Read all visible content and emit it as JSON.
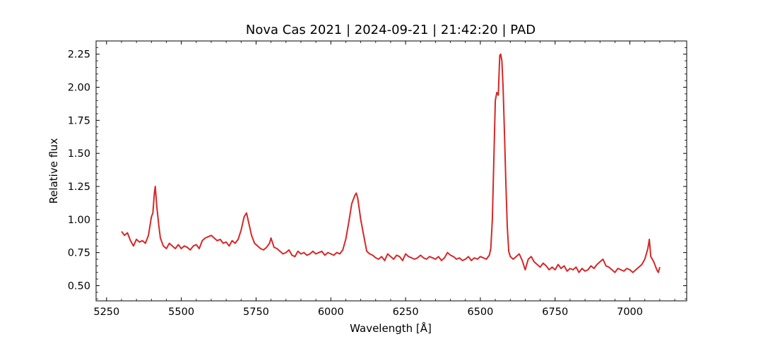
{
  "chart_data": {
    "type": "line",
    "title": "Nova Cas 2021 | 2024-09-21 | 21:42:20 | PAD",
    "xlabel": "Wavelength [Å]",
    "ylabel": "Relative flux",
    "xlim": [
      5215,
      7190
    ],
    "ylim": [
      0.385,
      2.35
    ],
    "x_ticks": [
      5250,
      5500,
      5750,
      6000,
      6250,
      6500,
      6750,
      7000
    ],
    "x_tick_labels": [
      "5250",
      "5500",
      "5750",
      "6000",
      "6250",
      "6500",
      "6750",
      "7000"
    ],
    "y_ticks": [
      0.5,
      0.75,
      1.0,
      1.25,
      1.5,
      1.75,
      2.0,
      2.25
    ],
    "y_tick_labels": [
      "0.50",
      "0.75",
      "1.00",
      "1.25",
      "1.50",
      "1.75",
      "2.00",
      "2.25"
    ],
    "grid": false,
    "series": [
      {
        "color": "#d62728",
        "points": [
          [
            5300,
            0.91
          ],
          [
            5310,
            0.88
          ],
          [
            5320,
            0.9
          ],
          [
            5330,
            0.84
          ],
          [
            5340,
            0.8
          ],
          [
            5350,
            0.85
          ],
          [
            5360,
            0.83
          ],
          [
            5370,
            0.84
          ],
          [
            5380,
            0.82
          ],
          [
            5390,
            0.88
          ],
          [
            5400,
            1.02
          ],
          [
            5405,
            1.05
          ],
          [
            5410,
            1.2
          ],
          [
            5413,
            1.25
          ],
          [
            5418,
            1.1
          ],
          [
            5425,
            0.95
          ],
          [
            5430,
            0.86
          ],
          [
            5440,
            0.8
          ],
          [
            5450,
            0.78
          ],
          [
            5460,
            0.82
          ],
          [
            5470,
            0.8
          ],
          [
            5480,
            0.78
          ],
          [
            5490,
            0.81
          ],
          [
            5500,
            0.78
          ],
          [
            5510,
            0.8
          ],
          [
            5520,
            0.79
          ],
          [
            5530,
            0.77
          ],
          [
            5540,
            0.8
          ],
          [
            5550,
            0.81
          ],
          [
            5560,
            0.78
          ],
          [
            5570,
            0.84
          ],
          [
            5580,
            0.86
          ],
          [
            5590,
            0.87
          ],
          [
            5600,
            0.88
          ],
          [
            5610,
            0.86
          ],
          [
            5620,
            0.84
          ],
          [
            5630,
            0.85
          ],
          [
            5640,
            0.82
          ],
          [
            5650,
            0.83
          ],
          [
            5660,
            0.8
          ],
          [
            5670,
            0.84
          ],
          [
            5680,
            0.82
          ],
          [
            5690,
            0.85
          ],
          [
            5700,
            0.92
          ],
          [
            5710,
            1.02
          ],
          [
            5718,
            1.05
          ],
          [
            5725,
            0.98
          ],
          [
            5735,
            0.88
          ],
          [
            5745,
            0.82
          ],
          [
            5755,
            0.8
          ],
          [
            5765,
            0.78
          ],
          [
            5775,
            0.77
          ],
          [
            5785,
            0.79
          ],
          [
            5795,
            0.82
          ],
          [
            5800,
            0.86
          ],
          [
            5810,
            0.79
          ],
          [
            5820,
            0.78
          ],
          [
            5830,
            0.76
          ],
          [
            5840,
            0.74
          ],
          [
            5850,
            0.75
          ],
          [
            5860,
            0.77
          ],
          [
            5870,
            0.73
          ],
          [
            5880,
            0.72
          ],
          [
            5890,
            0.76
          ],
          [
            5900,
            0.74
          ],
          [
            5910,
            0.75
          ],
          [
            5920,
            0.73
          ],
          [
            5930,
            0.74
          ],
          [
            5940,
            0.76
          ],
          [
            5950,
            0.74
          ],
          [
            5960,
            0.75
          ],
          [
            5970,
            0.76
          ],
          [
            5980,
            0.73
          ],
          [
            5990,
            0.75
          ],
          [
            6000,
            0.74
          ],
          [
            6010,
            0.73
          ],
          [
            6020,
            0.75
          ],
          [
            6030,
            0.74
          ],
          [
            6040,
            0.77
          ],
          [
            6050,
            0.85
          ],
          [
            6060,
            0.98
          ],
          [
            6070,
            1.12
          ],
          [
            6080,
            1.18
          ],
          [
            6085,
            1.2
          ],
          [
            6090,
            1.16
          ],
          [
            6095,
            1.08
          ],
          [
            6100,
            1.0
          ],
          [
            6110,
            0.88
          ],
          [
            6120,
            0.76
          ],
          [
            6130,
            0.74
          ],
          [
            6140,
            0.73
          ],
          [
            6150,
            0.71
          ],
          [
            6160,
            0.7
          ],
          [
            6170,
            0.72
          ],
          [
            6180,
            0.69
          ],
          [
            6190,
            0.74
          ],
          [
            6200,
            0.72
          ],
          [
            6210,
            0.7
          ],
          [
            6220,
            0.73
          ],
          [
            6230,
            0.72
          ],
          [
            6240,
            0.69
          ],
          [
            6250,
            0.74
          ],
          [
            6260,
            0.72
          ],
          [
            6270,
            0.71
          ],
          [
            6280,
            0.7
          ],
          [
            6290,
            0.71
          ],
          [
            6300,
            0.73
          ],
          [
            6310,
            0.71
          ],
          [
            6320,
            0.7
          ],
          [
            6330,
            0.72
          ],
          [
            6340,
            0.71
          ],
          [
            6350,
            0.7
          ],
          [
            6360,
            0.72
          ],
          [
            6370,
            0.69
          ],
          [
            6380,
            0.71
          ],
          [
            6390,
            0.75
          ],
          [
            6400,
            0.73
          ],
          [
            6410,
            0.72
          ],
          [
            6420,
            0.7
          ],
          [
            6430,
            0.71
          ],
          [
            6440,
            0.69
          ],
          [
            6450,
            0.7
          ],
          [
            6460,
            0.72
          ],
          [
            6470,
            0.69
          ],
          [
            6480,
            0.71
          ],
          [
            6490,
            0.7
          ],
          [
            6500,
            0.72
          ],
          [
            6510,
            0.71
          ],
          [
            6520,
            0.7
          ],
          [
            6530,
            0.73
          ],
          [
            6535,
            0.78
          ],
          [
            6540,
            1.0
          ],
          [
            6545,
            1.45
          ],
          [
            6550,
            1.9
          ],
          [
            6555,
            1.96
          ],
          [
            6560,
            1.94
          ],
          [
            6565,
            2.24
          ],
          [
            6568,
            2.25
          ],
          [
            6572,
            2.2
          ],
          [
            6576,
            2.0
          ],
          [
            6580,
            1.7
          ],
          [
            6585,
            1.3
          ],
          [
            6590,
            0.95
          ],
          [
            6595,
            0.76
          ],
          [
            6600,
            0.72
          ],
          [
            6610,
            0.7
          ],
          [
            6620,
            0.72
          ],
          [
            6630,
            0.74
          ],
          [
            6640,
            0.69
          ],
          [
            6650,
            0.62
          ],
          [
            6660,
            0.7
          ],
          [
            6670,
            0.72
          ],
          [
            6680,
            0.68
          ],
          [
            6690,
            0.66
          ],
          [
            6700,
            0.64
          ],
          [
            6710,
            0.67
          ],
          [
            6720,
            0.65
          ],
          [
            6730,
            0.62
          ],
          [
            6740,
            0.64
          ],
          [
            6750,
            0.62
          ],
          [
            6760,
            0.66
          ],
          [
            6770,
            0.63
          ],
          [
            6780,
            0.65
          ],
          [
            6790,
            0.61
          ],
          [
            6800,
            0.63
          ],
          [
            6810,
            0.62
          ],
          [
            6820,
            0.64
          ],
          [
            6830,
            0.6
          ],
          [
            6840,
            0.63
          ],
          [
            6850,
            0.61
          ],
          [
            6860,
            0.62
          ],
          [
            6870,
            0.65
          ],
          [
            6880,
            0.63
          ],
          [
            6890,
            0.66
          ],
          [
            6900,
            0.68
          ],
          [
            6910,
            0.7
          ],
          [
            6920,
            0.65
          ],
          [
            6930,
            0.64
          ],
          [
            6940,
            0.62
          ],
          [
            6950,
            0.6
          ],
          [
            6960,
            0.63
          ],
          [
            6970,
            0.62
          ],
          [
            6980,
            0.61
          ],
          [
            6990,
            0.63
          ],
          [
            7000,
            0.62
          ],
          [
            7010,
            0.6
          ],
          [
            7020,
            0.62
          ],
          [
            7030,
            0.64
          ],
          [
            7040,
            0.66
          ],
          [
            7050,
            0.7
          ],
          [
            7060,
            0.78
          ],
          [
            7065,
            0.85
          ],
          [
            7070,
            0.72
          ],
          [
            7080,
            0.68
          ],
          [
            7090,
            0.62
          ],
          [
            7095,
            0.6
          ],
          [
            7100,
            0.64
          ]
        ]
      }
    ]
  }
}
